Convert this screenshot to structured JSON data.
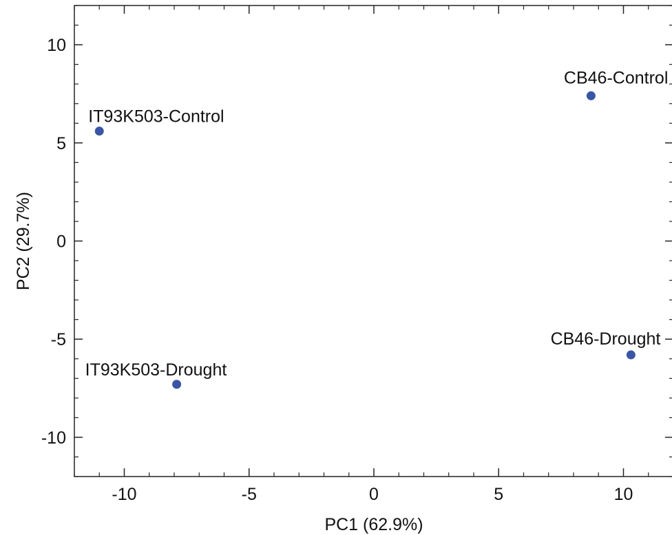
{
  "chart_data": {
    "type": "scatter",
    "title": "",
    "xlabel": "PC1  (62.9%)",
    "ylabel": "PC2  (29.7%)",
    "xlim": [
      -12,
      12
    ],
    "ylim": [
      -12,
      12
    ],
    "xticks": [
      -10,
      -5,
      0,
      5,
      10
    ],
    "yticks": [
      -10,
      -5,
      0,
      5,
      10
    ],
    "grid": false,
    "marker_color": "#3a55a4",
    "points": [
      {
        "label": "IT93K503-Control",
        "x": -11.0,
        "y": 5.6
      },
      {
        "label": "IT93K503-Drought",
        "x": -7.9,
        "y": -7.3
      },
      {
        "label": "CB46-Control",
        "x": 8.7,
        "y": 7.4
      },
      {
        "label": "CB46-Drought",
        "x": 10.3,
        "y": -5.8
      }
    ]
  }
}
